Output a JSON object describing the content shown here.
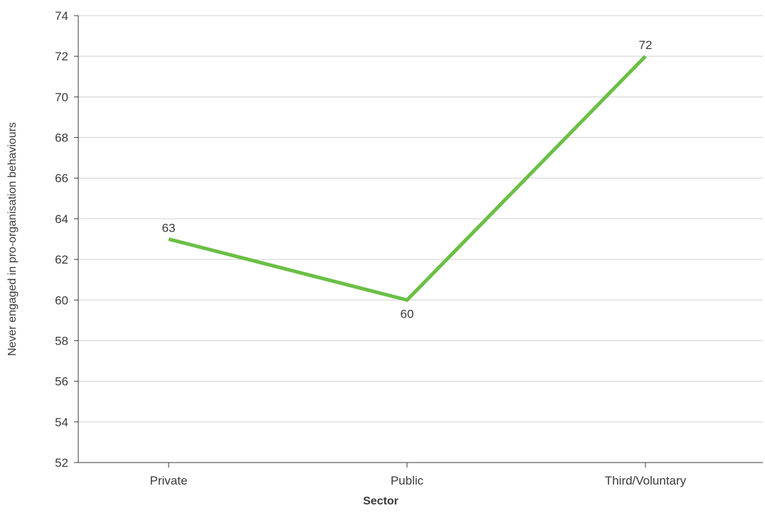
{
  "chart_data": {
    "type": "line",
    "categories": [
      "Private",
      "Public",
      "Third/Voluntary"
    ],
    "series": [
      {
        "values": [
          63,
          60,
          72
        ],
        "color": "#6abf45"
      }
    ],
    "data_labels": [
      "63",
      "60",
      "72"
    ],
    "title": "",
    "xlabel": "Sector",
    "ylabel": "Never engaged in pro-organisation behaviours",
    "ylim": [
      52,
      74
    ],
    "yticks": [
      52,
      54,
      56,
      58,
      60,
      62,
      64,
      66,
      68,
      70,
      72,
      74
    ],
    "grid": "horizontal",
    "legend": "none",
    "colors": {
      "gridline": "#d0d0d0",
      "axis": "#3a3a3a",
      "text": "#3a3a3a"
    }
  }
}
